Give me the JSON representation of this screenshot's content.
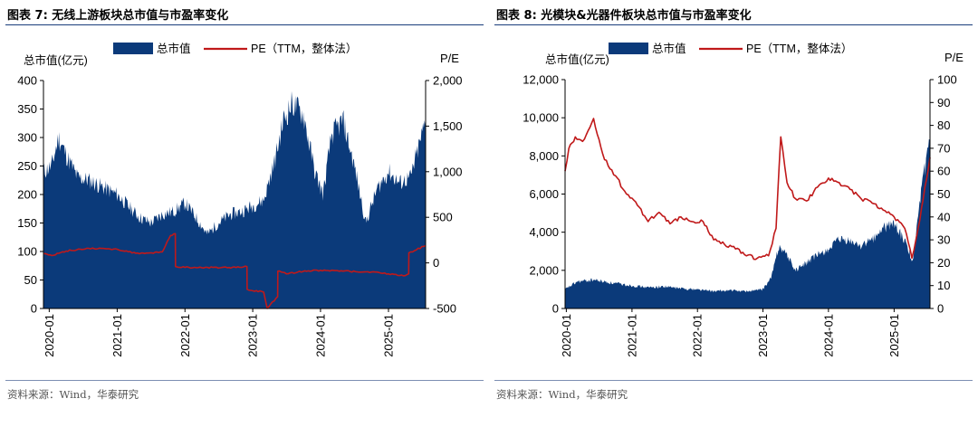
{
  "left": {
    "figure_title": "图表 7:   无线上游板块总市值与市盈率变化",
    "source": "资料来源：Wind，华泰研究",
    "legend": {
      "series1": "总市值",
      "series2": "PE（TTM，整体法）"
    },
    "axis_left_title": "总市值(亿元)",
    "axis_right_title": "P/E"
  },
  "right": {
    "figure_title": "图表 8:   光模块&光器件板块总市值与市盈率变化",
    "source": "资料来源：Wind，华泰研究",
    "legend": {
      "series1": "总市值",
      "series2": "PE（TTM，整体法）"
    },
    "axis_left_title": "总市值(亿元)",
    "axis_right_title": "P/E"
  },
  "colors": {
    "area": "#0b3a7a",
    "pe_line": "#c0191a",
    "axis": "#000000"
  },
  "chart_data": [
    {
      "type": "area",
      "secondary_type": "line",
      "x_type": "date",
      "x_ticks": [
        "2020-01",
        "2021-01",
        "2022-01",
        "2023-01",
        "2024-01",
        "2025-01"
      ],
      "x_range": [
        "2019-12-01",
        "2025-07-20"
      ],
      "ylim_left": [
        0,
        400
      ],
      "yticks_left": [
        0,
        50,
        100,
        150,
        200,
        250,
        300,
        350,
        400
      ],
      "ylim_right": [
        -500,
        2000
      ],
      "yticks_right": [
        -500,
        0,
        500,
        1000,
        1500,
        2000
      ],
      "series": [
        {
          "name": "总市值",
          "axis": "left",
          "x": [
            "2019-12-01",
            "2020-01-15",
            "2020-02-20",
            "2020-04-01",
            "2020-06-01",
            "2020-08-01",
            "2020-10-01",
            "2021-01-01",
            "2021-03-01",
            "2021-05-01",
            "2021-07-01",
            "2021-09-01",
            "2021-11-01",
            "2022-01-01",
            "2022-03-01",
            "2022-05-01",
            "2022-07-01",
            "2022-09-01",
            "2022-11-01",
            "2023-01-01",
            "2023-03-01",
            "2023-05-01",
            "2023-06-15",
            "2023-08-01",
            "2023-10-01",
            "2023-12-01",
            "2024-01-15",
            "2024-03-01",
            "2024-05-01",
            "2024-07-01",
            "2024-09-01",
            "2024-11-01",
            "2025-01-01",
            "2025-03-01",
            "2025-05-01",
            "2025-07-20"
          ],
          "values": [
            240,
            250,
            300,
            270,
            230,
            225,
            215,
            200,
            180,
            160,
            150,
            165,
            170,
            185,
            160,
            130,
            150,
            165,
            170,
            180,
            190,
            260,
            330,
            360,
            340,
            240,
            200,
            305,
            330,
            250,
            150,
            210,
            240,
            220,
            230,
            330
          ]
        },
        {
          "name": "PE（TTM，整体法）",
          "axis": "right",
          "x": [
            "2019-12-01",
            "2020-01-15",
            "2020-04-01",
            "2020-08-01",
            "2021-01-01",
            "2021-05-01",
            "2021-09-01",
            "2021-10-15",
            "2021-11-10",
            "2021-11-11",
            "2022-01-01",
            "2022-06-01",
            "2022-11-01",
            "2022-12-01",
            "2022-12-02",
            "2023-03-01",
            "2023-03-20",
            "2023-05-15",
            "2023-05-16",
            "2023-07-01",
            "2023-09-01",
            "2024-01-01",
            "2024-05-01",
            "2024-10-01",
            "2025-01-01",
            "2025-04-01",
            "2025-04-20",
            "2025-04-21",
            "2025-07-20"
          ],
          "values": [
            100,
            80,
            130,
            160,
            150,
            100,
            120,
            300,
            320,
            -40,
            -50,
            -50,
            -50,
            -40,
            -290,
            -320,
            -500,
            -370,
            -90,
            -120,
            -100,
            -80,
            -90,
            -100,
            -120,
            -140,
            -120,
            110,
            190
          ]
        }
      ]
    },
    {
      "type": "area",
      "secondary_type": "line",
      "x_type": "date",
      "x_ticks": [
        "2020-01",
        "2021-01",
        "2022-01",
        "2023-01",
        "2024-01",
        "2025-01"
      ],
      "x_range": [
        "2019-12-25",
        "2025-07-20"
      ],
      "ylim_left": [
        0,
        12000
      ],
      "yticks_left": [
        0,
        2000,
        4000,
        6000,
        8000,
        10000,
        12000
      ],
      "ylim_right": [
        0,
        100
      ],
      "yticks_right": [
        0,
        10,
        20,
        30,
        40,
        50,
        60,
        70,
        80,
        90,
        100
      ],
      "series": [
        {
          "name": "总市值",
          "axis": "left",
          "x": [
            "2019-12-25",
            "2020-03-01",
            "2020-06-01",
            "2020-09-01",
            "2021-01-01",
            "2021-04-01",
            "2021-07-01",
            "2021-10-01",
            "2022-01-01",
            "2022-04-01",
            "2022-07-01",
            "2022-10-01",
            "2023-01-01",
            "2023-02-15",
            "2023-04-01",
            "2023-05-15",
            "2023-07-01",
            "2023-09-01",
            "2023-11-01",
            "2024-01-01",
            "2024-03-01",
            "2024-05-01",
            "2024-07-01",
            "2024-09-01",
            "2024-11-01",
            "2025-01-01",
            "2025-03-01",
            "2025-04-15",
            "2025-06-01",
            "2025-07-20"
          ],
          "values": [
            1000,
            1400,
            1500,
            1350,
            1200,
            1100,
            1150,
            1050,
            1000,
            900,
            950,
            900,
            1000,
            1600,
            3300,
            2800,
            2000,
            2400,
            2800,
            3100,
            3600,
            3500,
            3300,
            3600,
            4200,
            4500,
            3500,
            2500,
            6000,
            9000
          ]
        },
        {
          "name": "PE（TTM，整体法）",
          "axis": "right",
          "x": [
            "2019-12-25",
            "2020-01-15",
            "2020-02-20",
            "2020-04-01",
            "2020-06-01",
            "2020-08-01",
            "2020-10-01",
            "2020-12-01",
            "2021-02-01",
            "2021-04-01",
            "2021-06-01",
            "2021-08-01",
            "2021-10-01",
            "2021-12-01",
            "2022-02-01",
            "2022-04-01",
            "2022-06-01",
            "2022-08-01",
            "2022-10-01",
            "2022-12-01",
            "2023-02-01",
            "2023-03-15",
            "2023-04-10",
            "2023-05-15",
            "2023-07-01",
            "2023-09-01",
            "2023-11-01",
            "2024-01-01",
            "2024-03-01",
            "2024-05-01",
            "2024-07-01",
            "2024-09-01",
            "2024-11-01",
            "2025-01-01",
            "2025-03-01",
            "2025-04-10",
            "2025-05-15",
            "2025-07-20"
          ],
          "values": [
            60,
            70,
            75,
            73,
            83,
            65,
            58,
            50,
            45,
            38,
            42,
            37,
            40,
            38,
            38,
            30,
            28,
            26,
            23,
            22,
            23,
            35,
            75,
            55,
            48,
            47,
            53,
            57,
            55,
            52,
            48,
            46,
            43,
            40,
            35,
            22,
            35,
            66
          ]
        }
      ]
    }
  ]
}
